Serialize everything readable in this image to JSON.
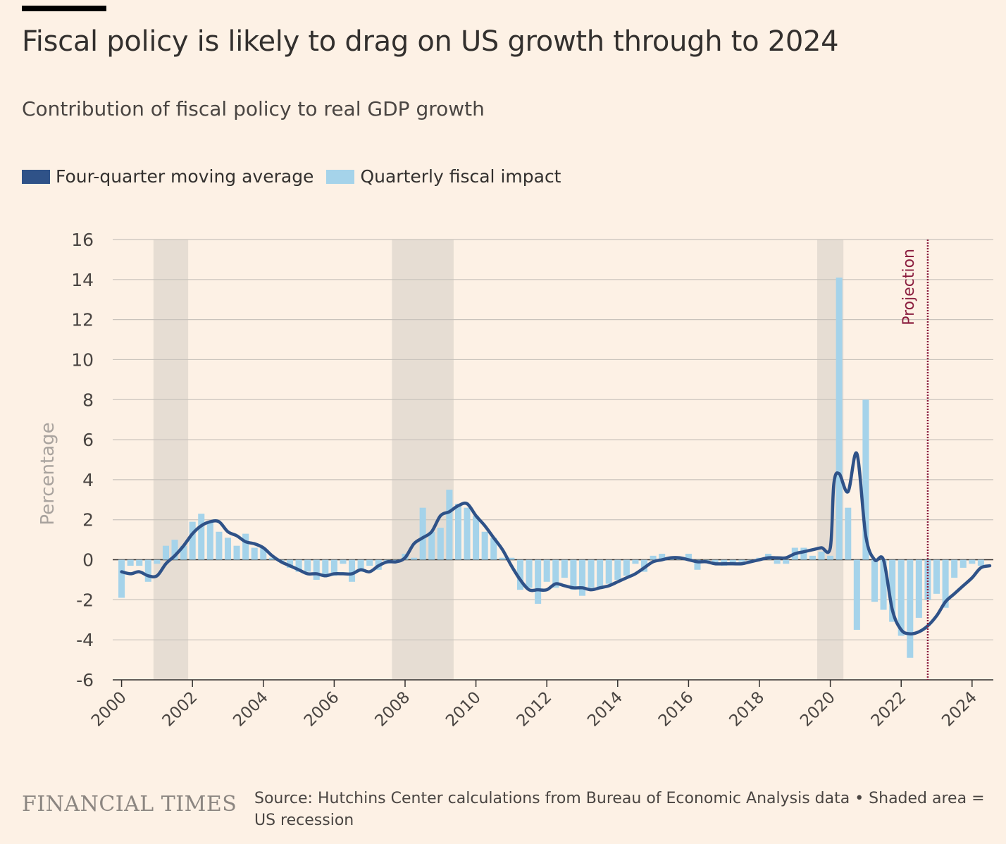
{
  "header": {
    "title": "Fiscal policy is likely to drag on US growth through to 2024",
    "subtitle": "Contribution of fiscal policy to real GDP growth"
  },
  "legend": {
    "items": [
      {
        "label": "Four-quarter moving average",
        "color": "#2f5288"
      },
      {
        "label": "Quarterly fiscal impact",
        "color": "#a5d3ea"
      }
    ]
  },
  "footer": {
    "logo": "FINANCIAL TIMES",
    "source": "Source: Hutchins Center calculations from Bureau of Economic Analysis data • Shaded area = US recession"
  },
  "chart_data": {
    "type": "bar+line",
    "ylabel": "Percentage",
    "ylim": [
      -6,
      16
    ],
    "yticks": [
      -6,
      -4,
      -2,
      0,
      2,
      4,
      6,
      8,
      10,
      12,
      14,
      16
    ],
    "xlim": [
      1999.75,
      2024.6
    ],
    "xticks": [
      2000,
      2002,
      2004,
      2006,
      2008,
      2010,
      2012,
      2014,
      2016,
      2018,
      2020,
      2022,
      2024
    ],
    "grid": true,
    "recessions": [
      [
        2000.9,
        2001.88
      ],
      [
        2007.63,
        2009.37
      ],
      [
        2019.63,
        2020.37
      ]
    ],
    "projection": {
      "x": 2022.75,
      "label": "Projection",
      "color": "#8b1e3f"
    },
    "colors": {
      "bars": "#a5d3ea",
      "line": "#2f5288",
      "recession": "#e6ddd3",
      "grid": "#c9c3bc",
      "axis": "#33302e"
    },
    "quarterly_fiscal_impact": {
      "x_start": 2000.0,
      "x_step": 0.25,
      "values": [
        -1.9,
        -0.3,
        -0.3,
        -1.1,
        -0.2,
        0.7,
        1.0,
        0.7,
        1.9,
        2.3,
        1.9,
        1.4,
        1.1,
        0.7,
        1.3,
        0.6,
        0.6,
        0.1,
        -0.1,
        -0.4,
        -0.6,
        -0.6,
        -1.0,
        -0.8,
        -0.8,
        -0.2,
        -1.1,
        -0.6,
        -0.3,
        -0.5,
        -0.2,
        -0.1,
        0.3,
        0.1,
        2.6,
        1.4,
        1.6,
        3.5,
        2.8,
        2.6,
        2.2,
        1.4,
        1.1,
        0.1,
        0.1,
        -1.5,
        -1.4,
        -2.2,
        -1.1,
        -1.4,
        -0.9,
        -1.5,
        -1.8,
        -1.4,
        -1.4,
        -1.2,
        -1.0,
        -0.8,
        -0.2,
        -0.6,
        0.2,
        0.3,
        0.1,
        0.1,
        0.3,
        -0.5,
        -0.1,
        -0.2,
        -0.3,
        -0.2,
        -0.1,
        -0.1,
        0.1,
        0.3,
        -0.2,
        -0.2,
        0.6,
        0.6,
        0.2,
        0.4,
        0.2,
        14.1,
        2.6,
        -3.5,
        8.0,
        -2.1,
        -2.5,
        -3.1,
        -3.8,
        -4.9,
        -2.9,
        -2.0,
        -1.7,
        -2.4,
        -0.9,
        -0.4,
        -0.2,
        -0.3
      ]
    },
    "four_quarter_moving_average": {
      "x": [
        2000.0,
        2000.25,
        2000.5,
        2000.75,
        2001.0,
        2001.25,
        2001.5,
        2001.75,
        2002.0,
        2002.25,
        2002.5,
        2002.75,
        2003.0,
        2003.25,
        2003.5,
        2003.75,
        2004.0,
        2004.25,
        2004.5,
        2004.75,
        2005.0,
        2005.25,
        2005.5,
        2005.75,
        2006.0,
        2006.25,
        2006.5,
        2006.75,
        2007.0,
        2007.25,
        2007.5,
        2007.75,
        2008.0,
        2008.25,
        2008.5,
        2008.75,
        2009.0,
        2009.25,
        2009.5,
        2009.75,
        2010.0,
        2010.25,
        2010.5,
        2010.75,
        2011.0,
        2011.25,
        2011.5,
        2011.75,
        2012.0,
        2012.25,
        2012.5,
        2012.75,
        2013.0,
        2013.25,
        2013.5,
        2013.75,
        2014.0,
        2014.25,
        2014.5,
        2014.75,
        2015.0,
        2015.25,
        2015.5,
        2015.75,
        2016.0,
        2016.25,
        2016.5,
        2016.75,
        2017.0,
        2017.25,
        2017.5,
        2017.75,
        2018.0,
        2018.25,
        2018.5,
        2018.75,
        2019.0,
        2019.25,
        2019.5,
        2019.75,
        2020.0,
        2020.1,
        2020.25,
        2020.5,
        2020.75,
        2021.0,
        2021.25,
        2021.5,
        2021.75,
        2022.0,
        2022.25,
        2022.5,
        2022.75,
        2023.0,
        2023.25,
        2023.5,
        2023.75,
        2024.0,
        2024.25,
        2024.5
      ],
      "y": [
        -0.6,
        -0.7,
        -0.6,
        -0.8,
        -0.8,
        -0.2,
        0.2,
        0.7,
        1.3,
        1.7,
        1.9,
        1.9,
        1.4,
        1.2,
        0.9,
        0.8,
        0.6,
        0.2,
        -0.1,
        -0.3,
        -0.5,
        -0.7,
        -0.7,
        -0.8,
        -0.7,
        -0.7,
        -0.7,
        -0.5,
        -0.6,
        -0.3,
        -0.1,
        -0.1,
        0.1,
        0.8,
        1.1,
        1.4,
        2.2,
        2.4,
        2.7,
        2.8,
        2.2,
        1.7,
        1.1,
        0.5,
        -0.3,
        -1.0,
        -1.5,
        -1.5,
        -1.5,
        -1.2,
        -1.3,
        -1.4,
        -1.4,
        -1.5,
        -1.4,
        -1.3,
        -1.1,
        -0.9,
        -0.7,
        -0.4,
        -0.1,
        0.0,
        0.1,
        0.1,
        0.0,
        -0.1,
        -0.1,
        -0.2,
        -0.2,
        -0.2,
        -0.2,
        -0.1,
        0.0,
        0.1,
        0.1,
        0.1,
        0.3,
        0.4,
        0.5,
        0.6,
        0.6,
        3.8,
        4.3,
        3.4,
        5.3,
        1.2,
        0.0,
        0.0,
        -2.5,
        -3.5,
        -3.7,
        -3.6,
        -3.3,
        -2.8,
        -2.1,
        -1.7,
        -1.3,
        -0.9,
        -0.4,
        -0.3
      ]
    }
  }
}
